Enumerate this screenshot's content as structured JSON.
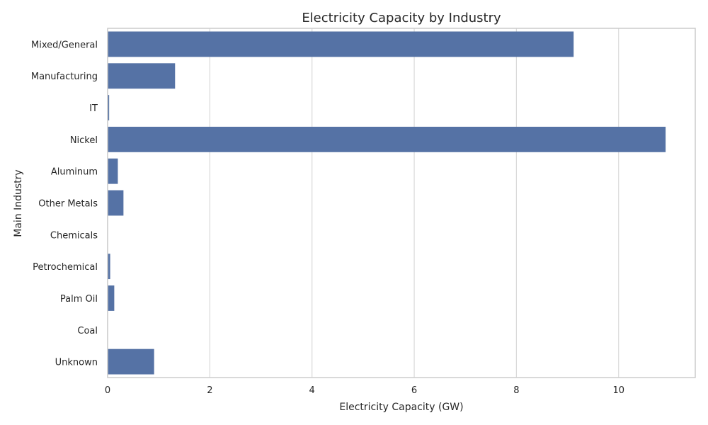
{
  "chart_data": {
    "type": "bar",
    "orientation": "horizontal",
    "title": "Electricity Capacity by Industry",
    "xlabel": "Electricity Capacity (GW)",
    "ylabel": "Main Industry",
    "categories": [
      "Mixed/General",
      "Manufacturing",
      "IT",
      "Nickel",
      "Aluminum",
      "Other Metals",
      "Chemicals",
      "Petrochemical",
      "Palm Oil",
      "Coal",
      "Unknown"
    ],
    "values": [
      9.12,
      1.32,
      0.03,
      10.92,
      0.2,
      0.31,
      0.0,
      0.05,
      0.13,
      0.0,
      0.91
    ],
    "xlim": [
      0,
      11.5
    ],
    "xticks": [
      "0",
      "2",
      "4",
      "6",
      "8",
      "10"
    ],
    "grid": "vertical",
    "bar_color": "#5572a5"
  }
}
